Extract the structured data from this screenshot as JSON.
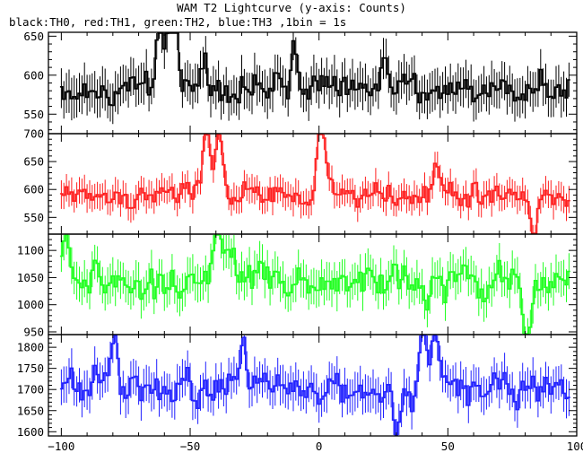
{
  "chart_data": {
    "type": "line",
    "title": "WAM T2 Lightcurve (y-axis: Counts)",
    "subtitle": "black:TH0, red:TH1, green:TH2, blue:TH3 ,1bin = 1s",
    "xlim": [
      -105,
      100
    ],
    "x_ticks": [
      -100,
      -50,
      0,
      50,
      100
    ],
    "grid": false,
    "panels": [
      {
        "name": "TH0",
        "color": "#000000",
        "ylim": [
          525,
          655
        ],
        "y_ticks": [
          550,
          600,
          650
        ],
        "mean": 582,
        "noise": 17,
        "err": 25,
        "peaks": [
          [
            -62,
            60
          ],
          [
            -58,
            65
          ],
          [
            -56,
            45
          ],
          [
            -45,
            30
          ],
          [
            -10,
            40
          ],
          [
            25,
            30
          ]
        ]
      },
      {
        "name": "TH1",
        "color": "#ff2020",
        "ylim": [
          520,
          700
        ],
        "y_ticks": [
          550,
          600,
          650,
          700
        ],
        "mean": 590,
        "noise": 18,
        "err": 24,
        "peaks": [
          [
            -44,
            100
          ],
          [
            -39,
            85
          ],
          [
            0,
            65
          ],
          [
            1,
            50
          ],
          [
            45,
            40
          ],
          [
            83,
            -55
          ]
        ]
      },
      {
        "name": "TH2",
        "color": "#20ff20",
        "ylim": [
          945,
          1130
        ],
        "y_ticks": [
          950,
          1000,
          1050,
          1100
        ],
        "mean": 1040,
        "noise": 28,
        "err": 33,
        "peaks": [
          [
            -99,
            70
          ],
          [
            -40,
            80
          ],
          [
            -35,
            50
          ],
          [
            80,
            -80
          ]
        ]
      },
      {
        "name": "TH3",
        "color": "#2020ff",
        "ylim": [
          1590,
          1830
        ],
        "y_ticks": [
          1600,
          1650,
          1700,
          1750,
          1800
        ],
        "mean": 1700,
        "noise": 38,
        "err": 42,
        "peaks": [
          [
            -80,
            120
          ],
          [
            -30,
            110
          ],
          [
            30,
            -90
          ],
          [
            40,
            130
          ],
          [
            45,
            80
          ]
        ]
      }
    ]
  }
}
